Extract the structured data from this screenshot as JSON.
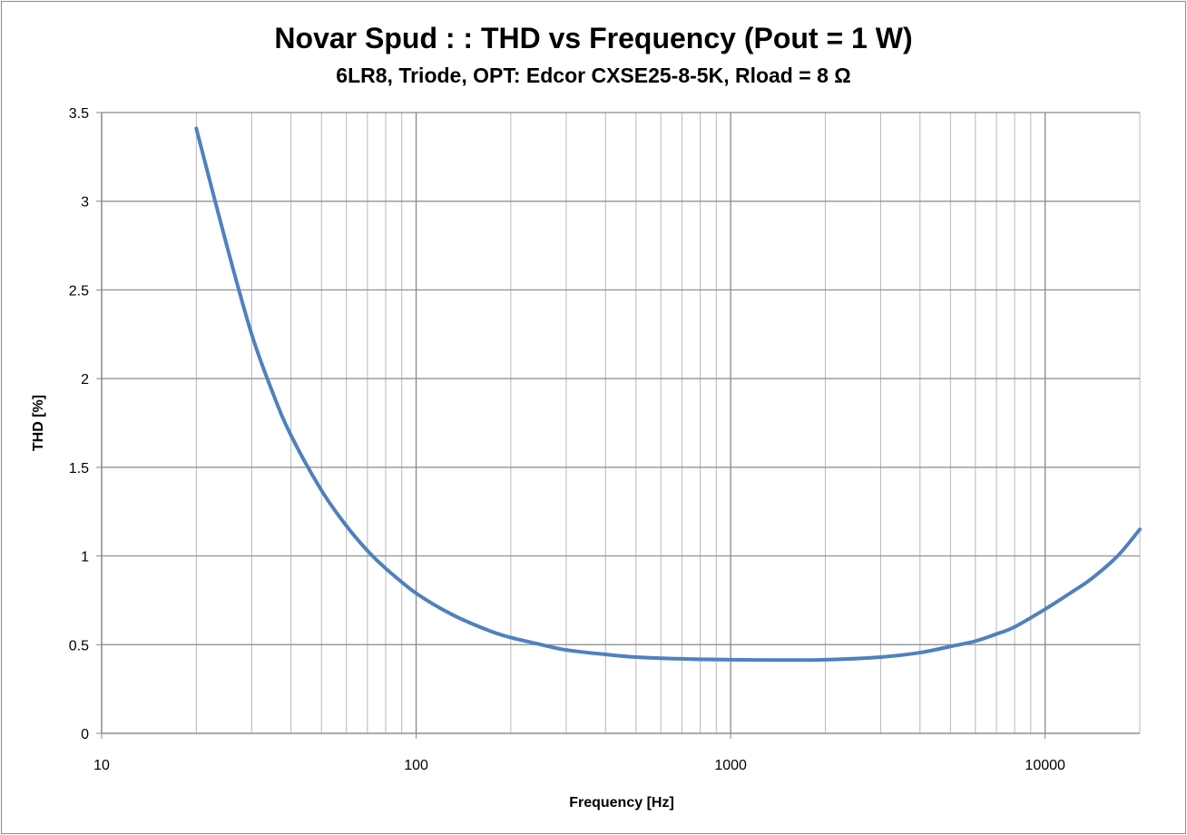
{
  "chart_data": {
    "type": "line",
    "title": "Novar Spud : : THD vs Frequency (Pout = 1 W)",
    "subtitle": "6LR8, Triode, OPT: Edcor CXSE25-8-5K, Rload = 8 Ω",
    "xlabel": "Frequency [Hz]",
    "ylabel": "THD [%]",
    "x_scale": "log",
    "xlim": [
      10,
      20000
    ],
    "ylim": [
      0,
      3.5
    ],
    "x_ticks": [
      "10",
      "100",
      "1000",
      "10000"
    ],
    "y_ticks": [
      "0",
      "0.5",
      "1",
      "1.5",
      "2",
      "2.5",
      "3",
      "3.5"
    ],
    "grid": true,
    "series_color": "#4f81bd",
    "series": [
      {
        "x": [
          20,
          25,
          30,
          35,
          40,
          50,
          60,
          70,
          80,
          100,
          130,
          170,
          200,
          250,
          300,
          400,
          500,
          700,
          1000,
          1500,
          2000,
          3000,
          4000,
          5000,
          6000,
          7000,
          8000,
          10000,
          12000,
          14000,
          17000,
          20000
        ],
        "values": [
          3.41,
          2.75,
          2.25,
          1.92,
          1.68,
          1.37,
          1.17,
          1.03,
          0.93,
          0.79,
          0.67,
          0.58,
          0.54,
          0.5,
          0.47,
          0.445,
          0.43,
          0.42,
          0.415,
          0.413,
          0.415,
          0.43,
          0.455,
          0.49,
          0.52,
          0.56,
          0.6,
          0.7,
          0.79,
          0.87,
          1.0,
          1.15
        ]
      }
    ]
  }
}
